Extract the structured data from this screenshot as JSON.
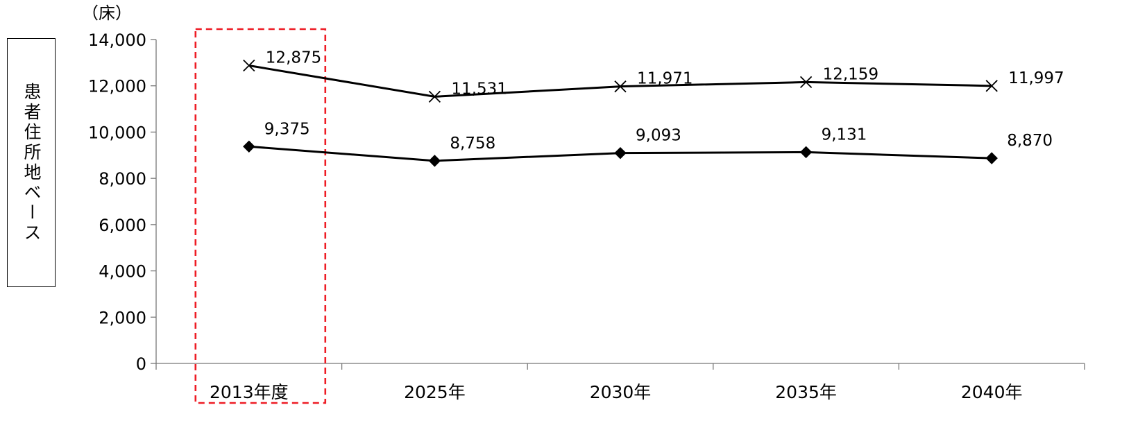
{
  "chart_data": {
    "type": "line",
    "unit_label": "（床）",
    "ylabel": "患者住所地ベース",
    "categories": [
      "2013年度",
      "2025年",
      "2030年",
      "2035年",
      "2040年"
    ],
    "ylim": [
      0,
      14000
    ],
    "yticks": [
      0,
      2000,
      4000,
      6000,
      8000,
      10000,
      12000,
      14000
    ],
    "ytick_labels": [
      "0",
      "2,000",
      "4,000",
      "6,000",
      "8,000",
      "10,000",
      "12,000",
      "14,000"
    ],
    "grid": false,
    "legend": "none",
    "series": [
      {
        "marker": "x",
        "color": "#000000",
        "values": [
          12875,
          11531,
          11971,
          12159,
          11997
        ],
        "labels": [
          "12,875",
          "11,531",
          "11,971",
          "12,159",
          "11,997"
        ]
      },
      {
        "marker": "diamond",
        "color": "#000000",
        "values": [
          9375,
          8758,
          9093,
          9131,
          8870
        ],
        "labels": [
          "9,375",
          "8,758",
          "9,093",
          "9,131",
          "8,870"
        ]
      }
    ],
    "highlight": {
      "category_index": 0,
      "style": "dashed-box",
      "color": "#ee1c25"
    }
  }
}
